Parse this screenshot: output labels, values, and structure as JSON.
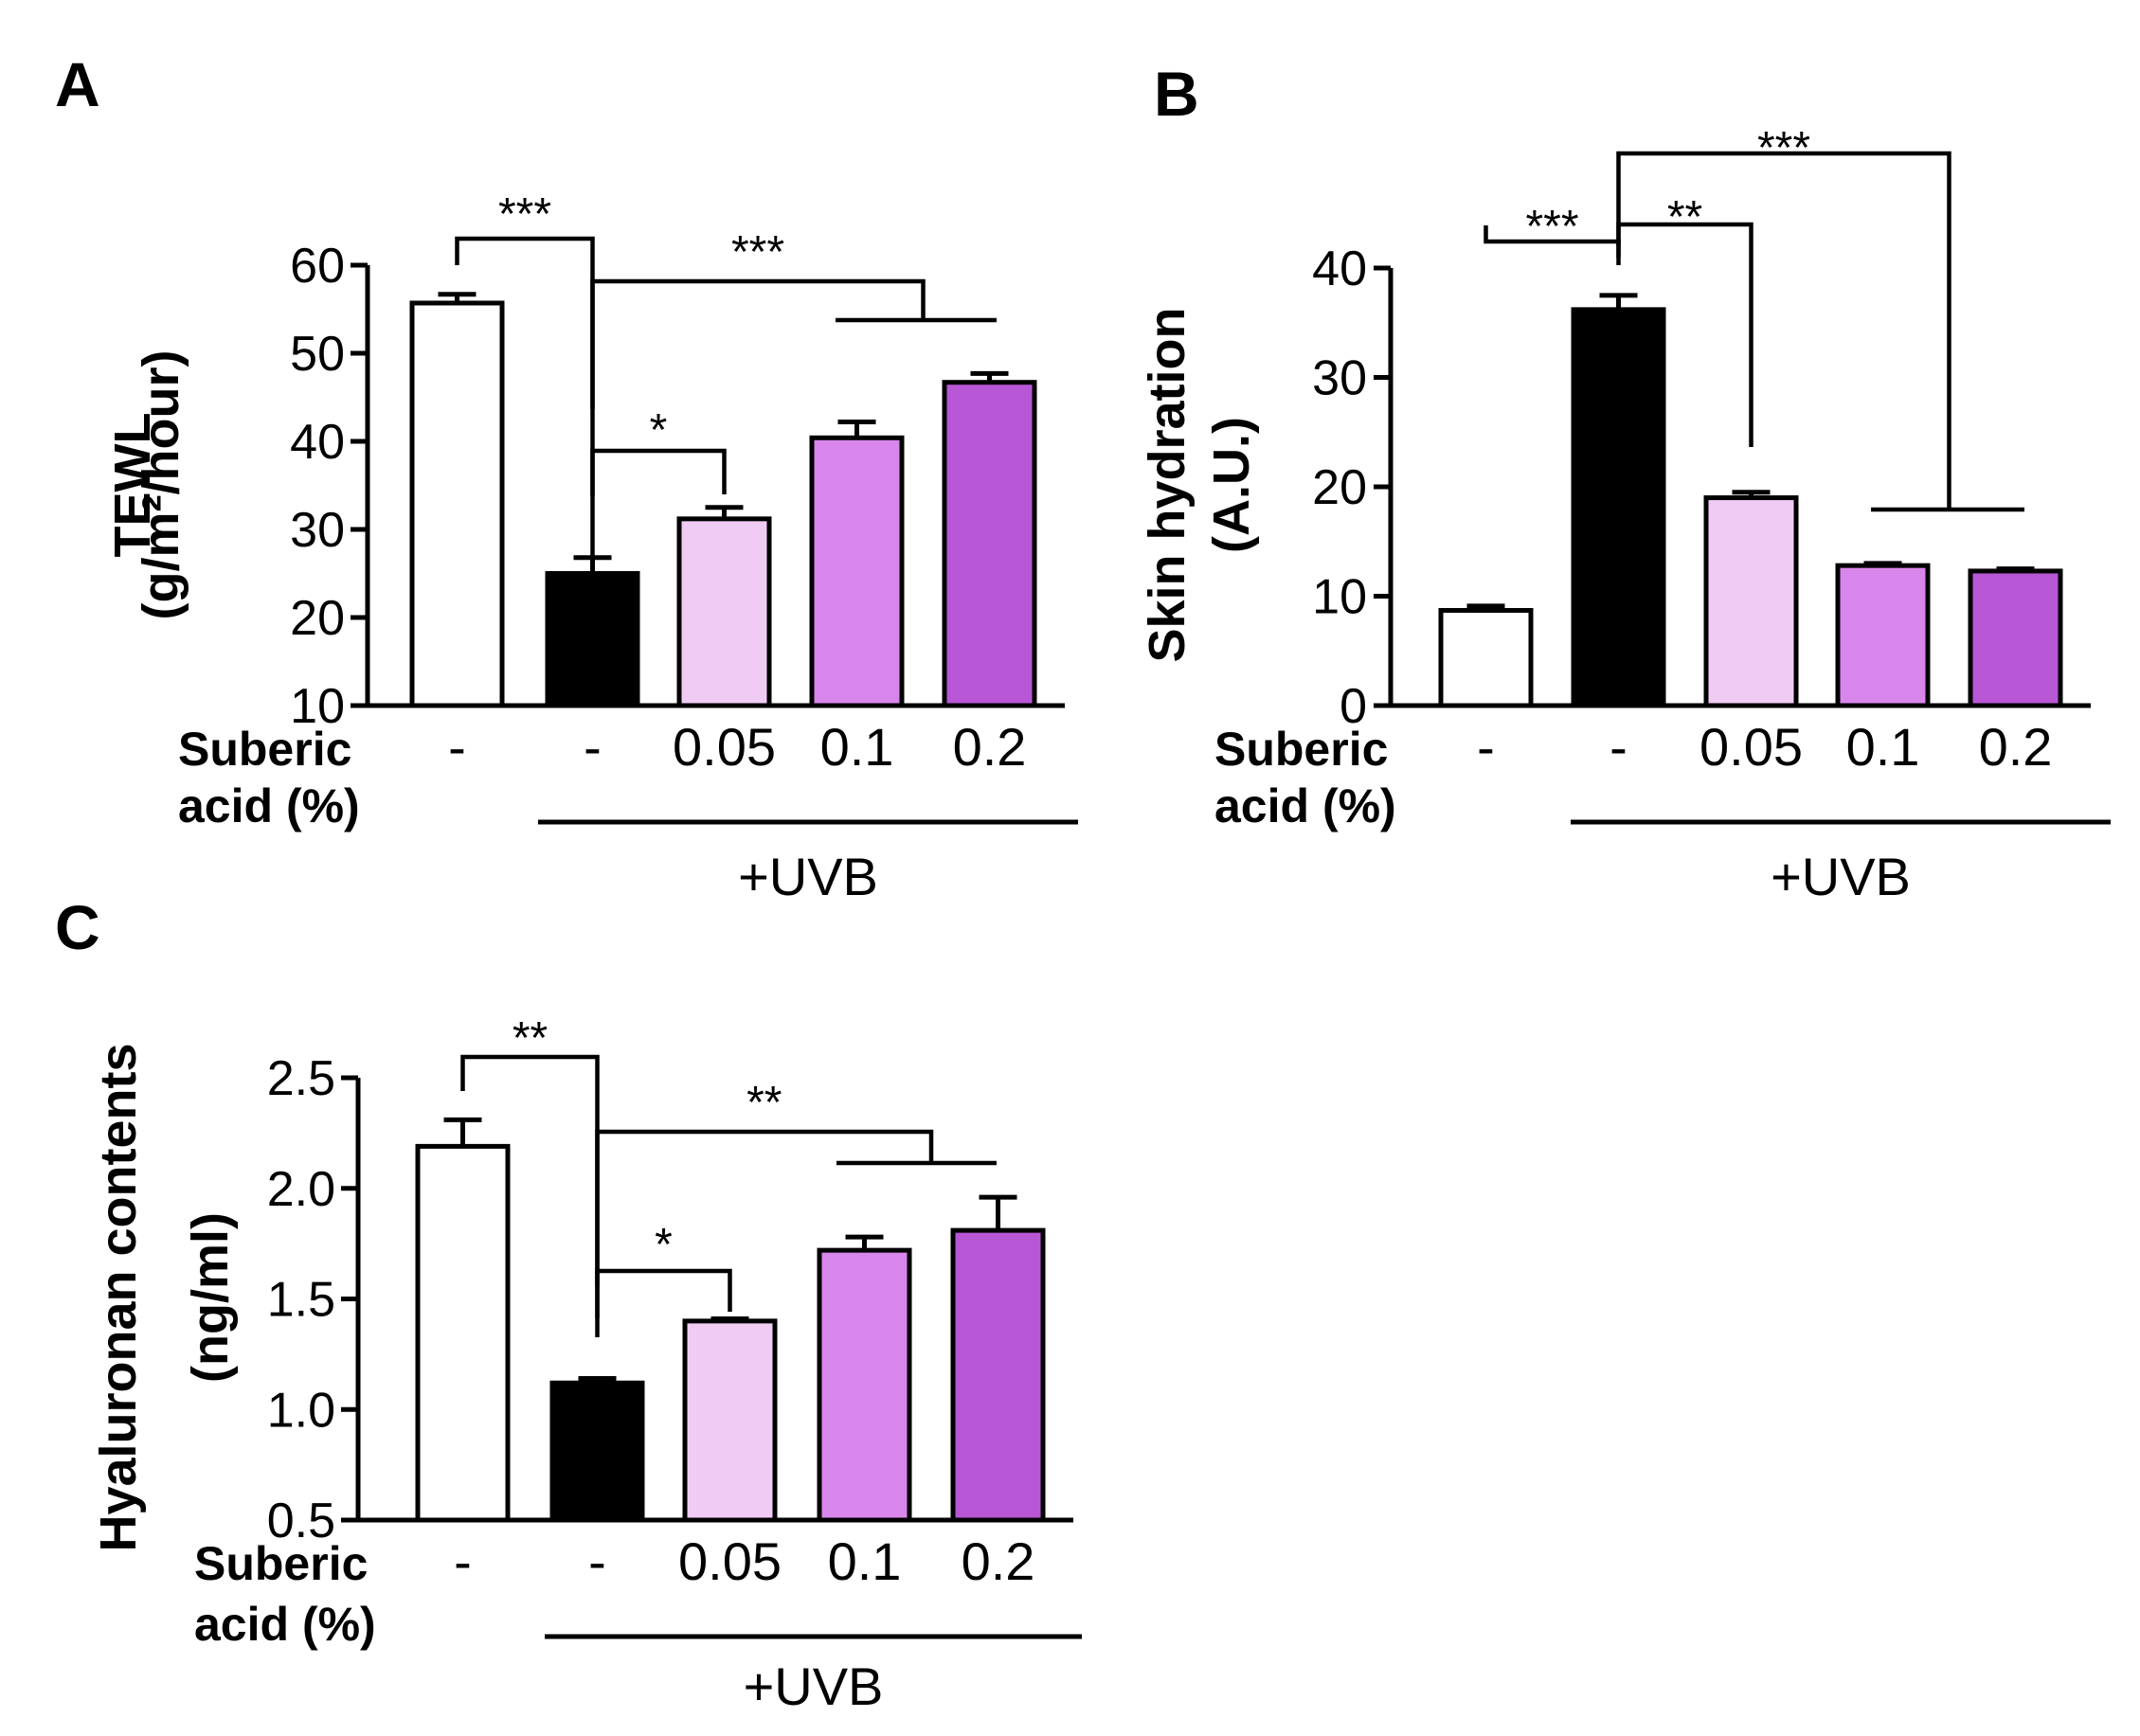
{
  "chart_data": [
    {
      "type": "bar",
      "panel": "A",
      "ylabel": [
        "TEWL",
        "(g/m²/hour)"
      ],
      "ylim": [
        10,
        60
      ],
      "yticks": [
        10,
        20,
        30,
        40,
        50,
        60
      ],
      "row_label": [
        "Suberic",
        "acid (%)"
      ],
      "categories": [
        "-",
        "-",
        "0.05",
        "0.1",
        "0.2"
      ],
      "values": [
        55.7,
        25.0,
        31.2,
        40.4,
        46.7
      ],
      "errors": [
        1.0,
        1.8,
        1.3,
        1.8,
        1.0
      ],
      "colors": [
        "#ffffff",
        "#000000",
        "#f0ccf4",
        "#d986ec",
        "#b757d6"
      ],
      "group_label": "+UVB",
      "significance": [
        {
          "label": "***",
          "from": 0,
          "to": 1
        },
        {
          "label": "*",
          "from": 1,
          "to": 2
        },
        {
          "label": "***",
          "from": 1,
          "to": [
            3,
            4
          ]
        }
      ]
    },
    {
      "type": "bar",
      "panel": "B",
      "ylabel": [
        "Skin hydration",
        "(A.U.)"
      ],
      "ylim": [
        0,
        40
      ],
      "yticks": [
        0,
        10,
        20,
        30,
        40
      ],
      "row_label": [
        "Suberic",
        "acid (%)"
      ],
      "categories": [
        "-",
        "-",
        "0.05",
        "0.1",
        "0.2"
      ],
      "values": [
        8.7,
        36.2,
        19.0,
        12.8,
        12.3
      ],
      "errors": [
        0.4,
        1.3,
        0.5,
        0.2,
        0.2
      ],
      "colors": [
        "#ffffff",
        "#000000",
        "#f0ccf4",
        "#d986ec",
        "#b757d6"
      ],
      "group_label": "+UVB",
      "significance": [
        {
          "label": "***",
          "from": 0,
          "to": 1
        },
        {
          "label": "**",
          "from": 1,
          "to": 2
        },
        {
          "label": "***",
          "from": 1,
          "to": [
            3,
            4
          ]
        }
      ]
    },
    {
      "type": "bar",
      "panel": "C",
      "ylabel": [
        "Hyaluronan contents",
        "(ng/ml)"
      ],
      "ylim": [
        0.5,
        2.5
      ],
      "yticks": [
        "0.5",
        "1.0",
        "1.5",
        "2.0",
        "2.5"
      ],
      "row_label": [
        "Suberic",
        "acid (%)"
      ],
      "categories": [
        "-",
        "-",
        "0.05",
        "0.1",
        "0.2"
      ],
      "values": [
        2.19,
        1.12,
        1.4,
        1.72,
        1.81
      ],
      "errors": [
        0.12,
        0.02,
        0.01,
        0.06,
        0.15
      ],
      "colors": [
        "#ffffff",
        "#000000",
        "#f0ccf4",
        "#d986ec",
        "#b757d6"
      ],
      "group_label": "+UVB",
      "significance": [
        {
          "label": "**",
          "from": 0,
          "to": 1
        },
        {
          "label": "*",
          "from": 1,
          "to": 2
        },
        {
          "label": "**",
          "from": 1,
          "to": [
            3,
            4
          ]
        }
      ]
    }
  ]
}
